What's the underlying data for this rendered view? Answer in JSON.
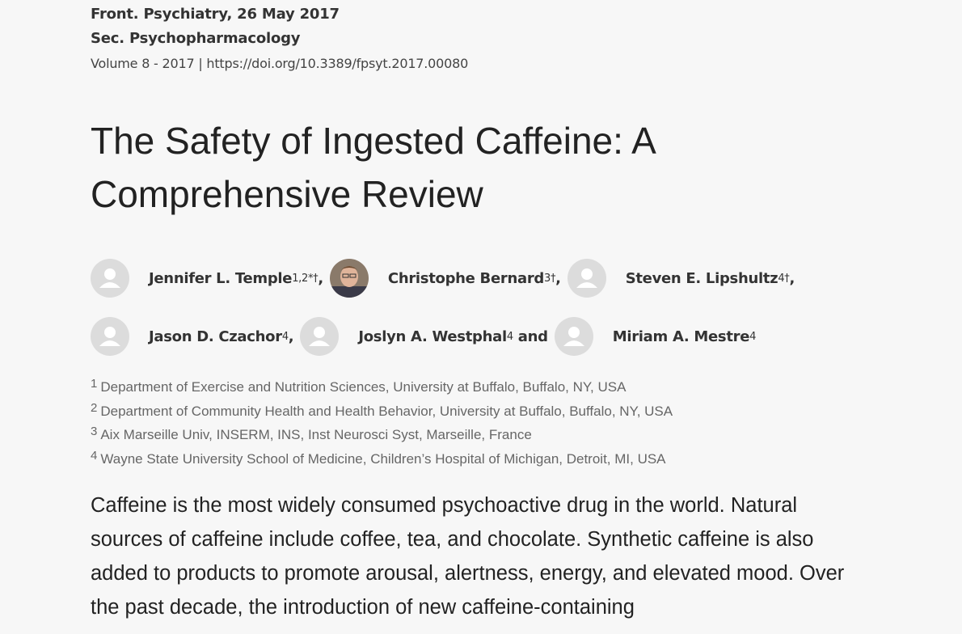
{
  "header": {
    "journal_date": "Front. Psychiatry, 26 May 2017",
    "section": "Sec. Psychopharmacology",
    "volume_doi": "Volume 8 - 2017 | https://doi.org/10.3389/fpsyt.2017.00080"
  },
  "title": "The Safety of Ingested Caffeine: A Comprehensive Review",
  "authors": [
    {
      "name": "Jennifer L. Temple",
      "sup": "1,2*†",
      "separator": ","
    },
    {
      "name": "Christophe Bernard",
      "sup": "3†",
      "separator": ","
    },
    {
      "name": "Steven E. Lipshultz",
      "sup": "4†",
      "separator": ","
    },
    {
      "name": "Jason D. Czachor",
      "sup": "4",
      "separator": ","
    },
    {
      "name": "Joslyn A. Westphal",
      "sup": "4",
      "separator": " and"
    },
    {
      "name": "Miriam A. Mestre",
      "sup": "4"
    }
  ],
  "affiliations": [
    {
      "number": "1",
      "text": "Department of Exercise and Nutrition Sciences, University at Buffalo, Buffalo, NY, USA"
    },
    {
      "number": "2",
      "text": "Department of Community Health and Health Behavior, University at Buffalo, Buffalo, NY, USA"
    },
    {
      "number": "3",
      "text": "Aix Marseille Univ, INSERM, INS, Inst Neurosci Syst, Marseille, France"
    },
    {
      "number": "4",
      "text": "Wayne State University School of Medicine, Children’s Hospital of Michigan, Detroit, MI, USA"
    }
  ],
  "abstract": "Caffeine is the most widely consumed psychoactive drug in the world. Natural sources of caffeine include coffee, tea, and chocolate. Synthetic caffeine is also added to products to promote arousal, alertness, energy, and elevated mood. Over the past decade, the introduction of new caffeine-containing"
}
